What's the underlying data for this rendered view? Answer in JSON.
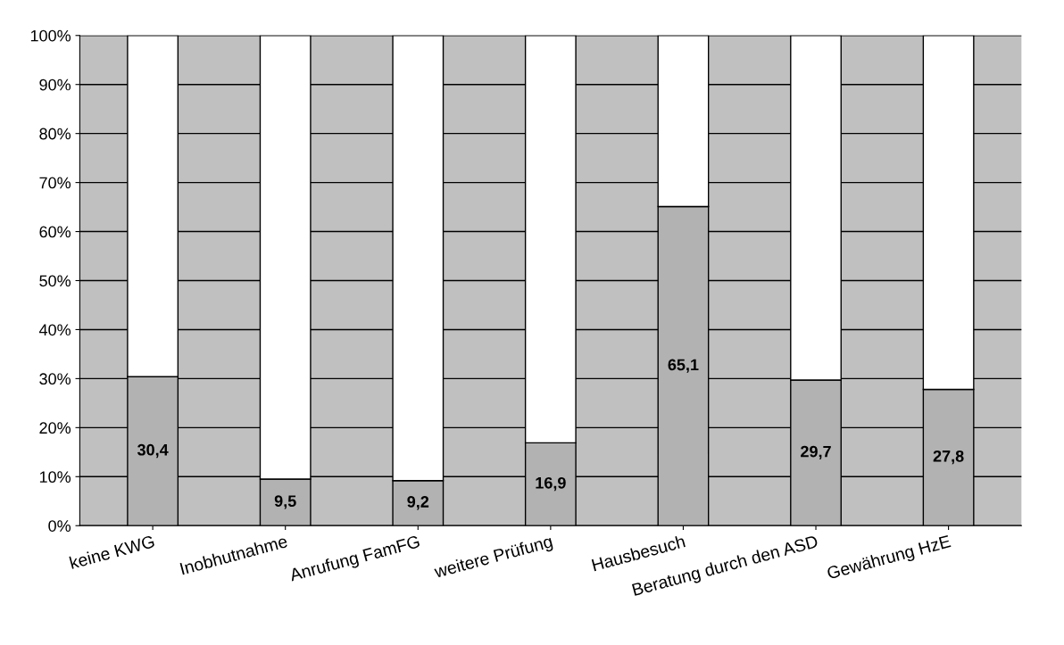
{
  "chart_data": {
    "type": "bar",
    "stacked": true,
    "categories": [
      "keine KWG",
      "Inobhutnahme",
      "Anrufung FamFG",
      "weitere Prüfung",
      "Hausbesuch",
      "Beratung durch den ASD",
      "Gewährung HzE"
    ],
    "series": [
      {
        "color": "#b2b2b2",
        "values": [
          30.4,
          9.5,
          9.2,
          16.9,
          65.1,
          29.7,
          27.8
        ],
        "value_labels": [
          "30,4",
          "9,5",
          "9,2",
          "16,9",
          "65,1",
          "29,7",
          "27,8"
        ]
      },
      {
        "color": "#ffffff",
        "values": [
          69.6,
          90.5,
          90.8,
          83.1,
          34.9,
          70.3,
          72.2
        ]
      }
    ],
    "ylim": [
      0,
      100
    ],
    "yticks": [
      {
        "value": 0,
        "label": "0%"
      },
      {
        "value": 10,
        "label": "10%"
      },
      {
        "value": 20,
        "label": "20%"
      },
      {
        "value": 30,
        "label": "30%"
      },
      {
        "value": 40,
        "label": "40%"
      },
      {
        "value": 50,
        "label": "50%"
      },
      {
        "value": 60,
        "label": "60%"
      },
      {
        "value": 70,
        "label": "70%"
      },
      {
        "value": 80,
        "label": "80%"
      },
      {
        "value": 90,
        "label": "90%"
      },
      {
        "value": 100,
        "label": "100%"
      }
    ],
    "grid": "y",
    "legend": false
  }
}
